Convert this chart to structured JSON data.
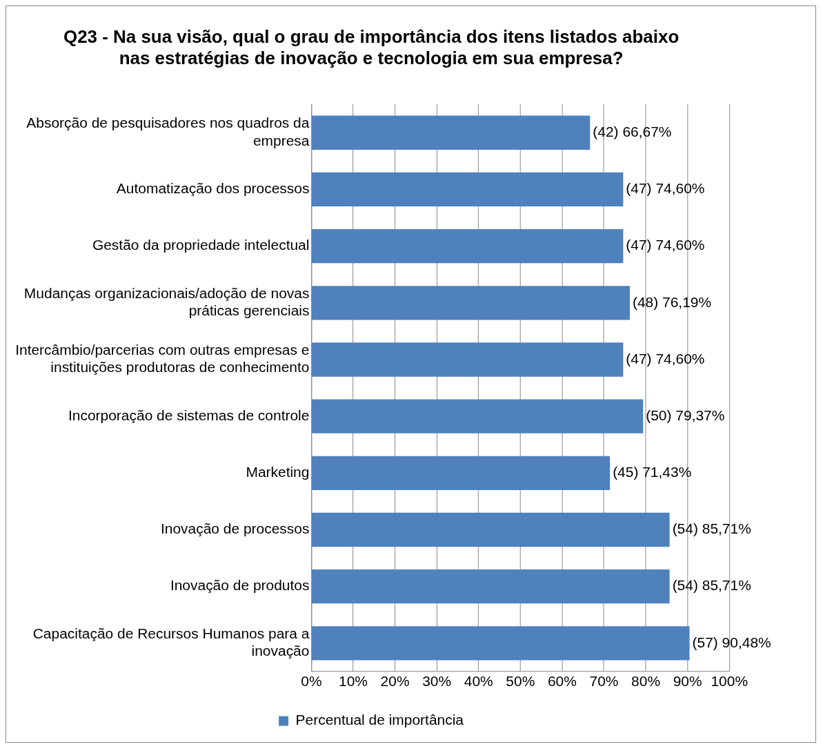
{
  "chart_data": {
    "type": "bar",
    "orientation": "horizontal",
    "title": "Q23 - Na sua visão, qual o grau de importância dos itens listados abaixo nas estratégias de inovação e tecnologia em sua empresa?",
    "categories": [
      "Absorção de pesquisadores nos quadros da empresa",
      "Automatização dos processos",
      "Gestão da propriedade intelectual",
      "Mudanças organizacionais/adoção de novas práticas gerenciais",
      "Intercâmbio/parcerias com outras empresas e instituições produtoras de conhecimento",
      "Incorporação de sistemas de controle",
      "Marketing",
      "Inovação de processos",
      "Inovação de produtos",
      "Capacitação de Recursos Humanos para a inovação"
    ],
    "series": [
      {
        "name": "Percentual de importância",
        "color": "#4f81bd",
        "values": [
          66.67,
          74.6,
          74.6,
          76.19,
          74.6,
          79.37,
          71.43,
          85.71,
          85.71,
          90.48
        ],
        "value_labels": [
          "(42) 66,67%",
          "(47) 74,60%",
          "(47) 74,60%",
          "(48) 76,19%",
          "(47) 74,60%",
          "(50) 79,37%",
          "(45) 71,43%",
          "(54) 85,71%",
          "(54) 85,71%",
          "(57) 90,48%"
        ]
      }
    ],
    "xlim": [
      0,
      100
    ],
    "xticks": [
      {
        "value": 0,
        "label": "0%"
      },
      {
        "value": 10,
        "label": "10%"
      },
      {
        "value": 20,
        "label": "20%"
      },
      {
        "value": 30,
        "label": "30%"
      },
      {
        "value": 40,
        "label": "40%"
      },
      {
        "value": 50,
        "label": "50%"
      },
      {
        "value": 60,
        "label": "60%"
      },
      {
        "value": 70,
        "label": "70%"
      },
      {
        "value": 80,
        "label": "80%"
      },
      {
        "value": 90,
        "label": "90%"
      },
      {
        "value": 100,
        "label": "100%"
      }
    ],
    "grid": "x",
    "legend": "bottom"
  }
}
